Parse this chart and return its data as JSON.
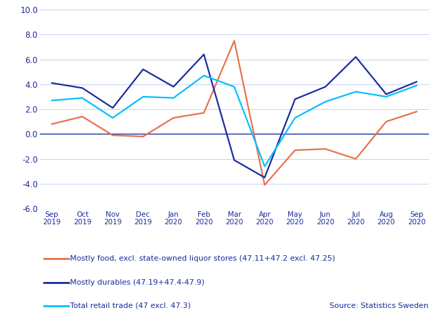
{
  "x_labels": [
    "Sep\n2019",
    "Oct\n2019",
    "Nov\n2019",
    "Dec\n2019",
    "Jan\n2020",
    "Feb\n2020",
    "Mar\n2020",
    "Apr\n2020",
    "May\n2020",
    "Jun\n2020",
    "Jul\n2020",
    "Aug\n2020",
    "Sep\n2020"
  ],
  "food": [
    0.8,
    1.4,
    -0.1,
    -0.2,
    1.3,
    1.7,
    7.5,
    -4.1,
    -1.3,
    -1.2,
    -2.0,
    1.0,
    1.8
  ],
  "durables": [
    4.1,
    3.7,
    2.1,
    5.2,
    3.8,
    6.4,
    -2.1,
    -3.5,
    2.8,
    3.8,
    6.2,
    3.2,
    4.2
  ],
  "total": [
    2.7,
    2.9,
    1.3,
    3.0,
    2.9,
    4.7,
    3.8,
    -2.6,
    1.3,
    2.6,
    3.4,
    3.0,
    3.9
  ],
  "food_color": "#E8714A",
  "durables_color": "#1A2A9B",
  "total_color": "#00BFFF",
  "food_label": "Mostly food, excl. state-owned liquor stores (47.11+47.2 excl. 47.25)",
  "durables_label": "Mostly durables (47.19+47.4-47.9)",
  "total_label": "Total retail trade (47 excl. 47.3)",
  "source_text": "Source: Statistics Sweden",
  "ylim": [
    -6.0,
    10.0
  ],
  "yticks": [
    -6.0,
    -4.0,
    -2.0,
    0.0,
    2.0,
    4.0,
    6.0,
    8.0,
    10.0
  ],
  "grid_color": "#C8D0F0",
  "background_color": "#FFFFFF",
  "zero_line_color": "#1A2A9B",
  "tick_label_color": "#1A2A9B",
  "line_width": 1.6,
  "legend_text_color": "#1A2A9B",
  "source_color": "#1A2A9B"
}
